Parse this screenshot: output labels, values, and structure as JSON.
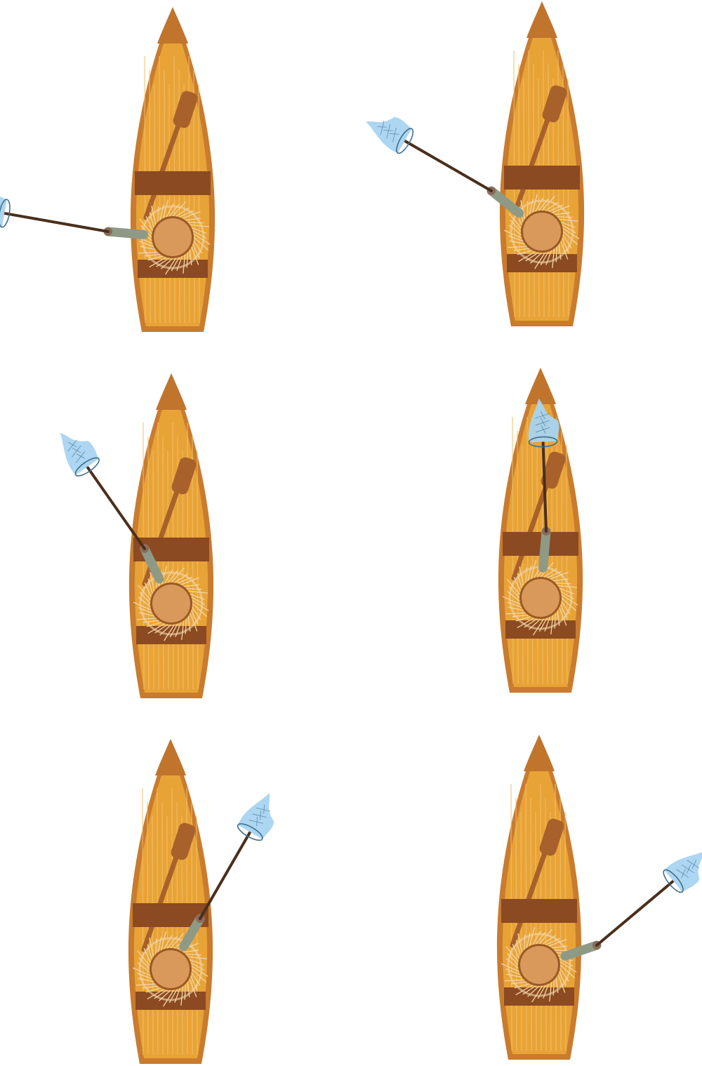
{
  "scene": {
    "background": "#ffffff",
    "colors": {
      "hull_outline": "#C97B2E",
      "hull_wood": "#E8A337",
      "wood_grain": "#F2C067",
      "bow_tip": "#C0742C",
      "bench": "#8B4A22",
      "oar": "#A8612A",
      "hat_straw": "#F2D6A8",
      "hat_crown": "#D9995A",
      "hat_crown_rim": "#9A5A25",
      "sleeve": "#8E9A86",
      "hand": "#8A6A58",
      "net_handle": "#4A2F1C",
      "net_mesh": "#A8D4F0",
      "net_rim": "#3E6E8A"
    }
  },
  "boats": [
    {
      "id": "boat-1",
      "net_direction": "left",
      "net_angle_deg": 190,
      "net_reach": 1.0
    },
    {
      "id": "boat-2",
      "net_direction": "up-left",
      "net_angle_deg": 210,
      "net_reach": 0.95
    },
    {
      "id": "boat-3",
      "net_direction": "up-left",
      "net_angle_deg": 235,
      "net_reach": 0.95
    },
    {
      "id": "boat-4",
      "net_direction": "up",
      "net_angle_deg": 268,
      "net_reach": 0.85
    },
    {
      "id": "boat-5",
      "net_direction": "up-right",
      "net_angle_deg": 300,
      "net_reach": 0.95
    },
    {
      "id": "boat-6",
      "net_direction": "right",
      "net_angle_deg": 320,
      "net_reach": 0.95
    }
  ]
}
